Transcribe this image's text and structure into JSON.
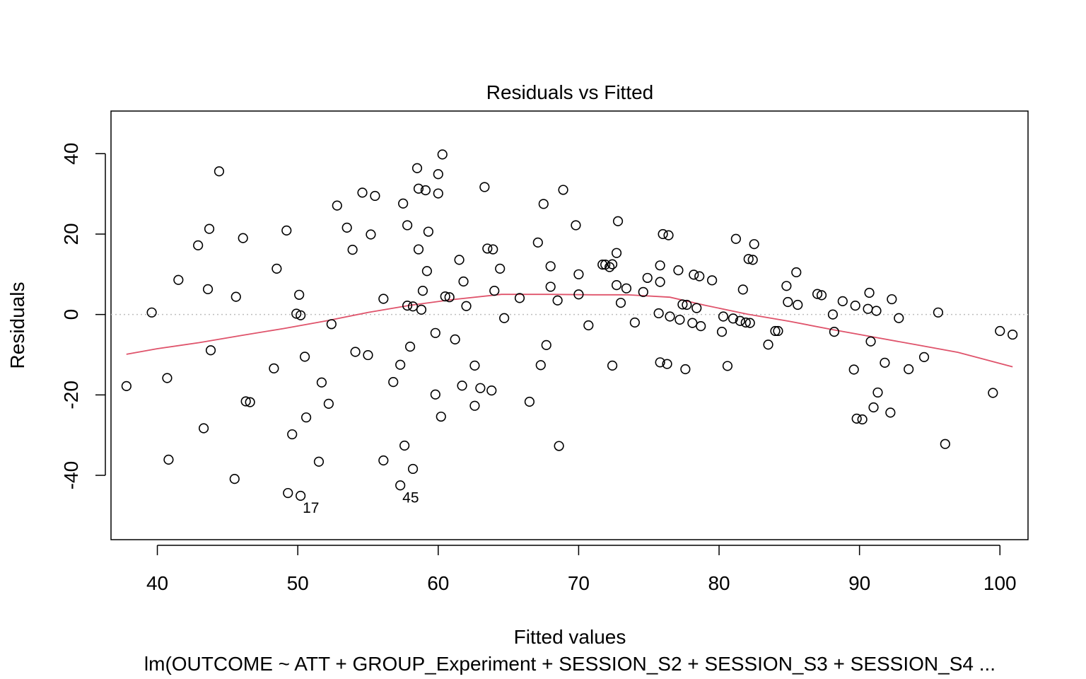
{
  "chart_data": {
    "type": "scatter",
    "title": "Residuals vs Fitted",
    "xlabel": "Fitted values",
    "ylabel": "Residuals",
    "subtitle": "lm(OUTCOME ~ ATT + GROUP_Experiment + SESSION_S2 + SESSION_S3 + SESSION_S4  ...",
    "xlim": [
      36.7,
      102.0
    ],
    "ylim": [
      -56.0,
      50.6
    ],
    "x_ticks": [
      40,
      50,
      60,
      70,
      80,
      90,
      100
    ],
    "x_tick_labels": [
      "40",
      "50",
      "60",
      "70",
      "80",
      "90",
      "100"
    ],
    "y_ticks": [
      -40,
      -20,
      0,
      20,
      40
    ],
    "y_tick_labels": [
      "-40",
      "-20",
      "0",
      "20",
      "40"
    ],
    "reference_line_y": 0,
    "grid": false,
    "colors": {
      "points": "#000000",
      "smooth": "#DF536B",
      "reference": "#BEBEBE"
    },
    "points": [
      {
        "x": 37.8,
        "y": -17.8
      },
      {
        "x": 39.6,
        "y": 0.5
      },
      {
        "x": 40.7,
        "y": -15.8
      },
      {
        "x": 40.8,
        "y": -36.1
      },
      {
        "x": 41.5,
        "y": 8.6
      },
      {
        "x": 42.9,
        "y": 17.2
      },
      {
        "x": 43.3,
        "y": -28.3
      },
      {
        "x": 43.6,
        "y": 6.3
      },
      {
        "x": 43.7,
        "y": 21.3
      },
      {
        "x": 43.8,
        "y": -8.9
      },
      {
        "x": 44.4,
        "y": 35.6
      },
      {
        "x": 45.5,
        "y": -40.9
      },
      {
        "x": 45.6,
        "y": 4.4
      },
      {
        "x": 46.1,
        "y": 19.0
      },
      {
        "x": 46.3,
        "y": -21.6
      },
      {
        "x": 46.6,
        "y": -21.8
      },
      {
        "x": 48.3,
        "y": -13.4
      },
      {
        "x": 48.5,
        "y": 11.4
      },
      {
        "x": 49.2,
        "y": 20.9
      },
      {
        "x": 49.3,
        "y": -44.4
      },
      {
        "x": 49.6,
        "y": -29.8
      },
      {
        "x": 49.9,
        "y": 0.2
      },
      {
        "x": 50.1,
        "y": 4.9
      },
      {
        "x": 50.2,
        "y": -0.2
      },
      {
        "x": 50.2,
        "y": -45.1
      },
      {
        "x": 50.5,
        "y": -10.5
      },
      {
        "x": 50.6,
        "y": -25.6
      },
      {
        "x": 51.5,
        "y": -36.6
      },
      {
        "x": 51.7,
        "y": -16.9
      },
      {
        "x": 52.2,
        "y": -22.2
      },
      {
        "x": 52.4,
        "y": -2.4
      },
      {
        "x": 52.8,
        "y": 27.1
      },
      {
        "x": 53.5,
        "y": 21.6
      },
      {
        "x": 53.9,
        "y": 16.1
      },
      {
        "x": 54.1,
        "y": -9.3
      },
      {
        "x": 54.6,
        "y": 30.3
      },
      {
        "x": 55.0,
        "y": -10.1
      },
      {
        "x": 55.2,
        "y": 19.9
      },
      {
        "x": 55.5,
        "y": 29.5
      },
      {
        "x": 56.1,
        "y": -36.3
      },
      {
        "x": 56.1,
        "y": 3.9
      },
      {
        "x": 56.8,
        "y": -16.8
      },
      {
        "x": 57.3,
        "y": -42.5
      },
      {
        "x": 57.3,
        "y": -12.5
      },
      {
        "x": 57.5,
        "y": 27.6
      },
      {
        "x": 57.6,
        "y": -32.6
      },
      {
        "x": 57.8,
        "y": 22.2
      },
      {
        "x": 57.8,
        "y": 2.2
      },
      {
        "x": 58.0,
        "y": -8.0
      },
      {
        "x": 58.2,
        "y": 2.0
      },
      {
        "x": 58.2,
        "y": -38.4
      },
      {
        "x": 58.5,
        "y": 36.4
      },
      {
        "x": 58.6,
        "y": 31.3
      },
      {
        "x": 58.6,
        "y": 16.2
      },
      {
        "x": 58.8,
        "y": 1.2
      },
      {
        "x": 58.9,
        "y": 5.9
      },
      {
        "x": 59.1,
        "y": 30.9
      },
      {
        "x": 59.2,
        "y": 10.8
      },
      {
        "x": 59.3,
        "y": 20.6
      },
      {
        "x": 59.8,
        "y": -4.6
      },
      {
        "x": 59.8,
        "y": -19.9
      },
      {
        "x": 60.0,
        "y": 30.1
      },
      {
        "x": 60.0,
        "y": 34.9
      },
      {
        "x": 60.2,
        "y": -25.4
      },
      {
        "x": 60.3,
        "y": 39.8
      },
      {
        "x": 60.5,
        "y": 4.5
      },
      {
        "x": 60.8,
        "y": 4.3
      },
      {
        "x": 61.2,
        "y": -6.2
      },
      {
        "x": 61.5,
        "y": 13.6
      },
      {
        "x": 61.7,
        "y": -17.7
      },
      {
        "x": 61.8,
        "y": 8.2
      },
      {
        "x": 62.0,
        "y": 2.1
      },
      {
        "x": 62.6,
        "y": -12.7
      },
      {
        "x": 62.6,
        "y": -22.7
      },
      {
        "x": 63.0,
        "y": -18.3
      },
      {
        "x": 63.3,
        "y": 31.7
      },
      {
        "x": 63.5,
        "y": 16.4
      },
      {
        "x": 63.8,
        "y": -18.9
      },
      {
        "x": 63.9,
        "y": 16.2
      },
      {
        "x": 64.0,
        "y": 5.9
      },
      {
        "x": 64.4,
        "y": 11.4
      },
      {
        "x": 64.7,
        "y": -0.9
      },
      {
        "x": 65.8,
        "y": 4.1
      },
      {
        "x": 66.5,
        "y": -21.7
      },
      {
        "x": 67.1,
        "y": 17.9
      },
      {
        "x": 67.3,
        "y": -12.6
      },
      {
        "x": 67.5,
        "y": 27.5
      },
      {
        "x": 67.7,
        "y": -7.6
      },
      {
        "x": 68.0,
        "y": 12.0
      },
      {
        "x": 68.0,
        "y": 6.9
      },
      {
        "x": 68.5,
        "y": 3.5
      },
      {
        "x": 68.6,
        "y": -32.7
      },
      {
        "x": 68.9,
        "y": 31.0
      },
      {
        "x": 69.8,
        "y": 22.2
      },
      {
        "x": 70.0,
        "y": 10.0
      },
      {
        "x": 70.0,
        "y": 5.0
      },
      {
        "x": 70.7,
        "y": -2.7
      },
      {
        "x": 71.7,
        "y": 12.4
      },
      {
        "x": 71.9,
        "y": 12.4
      },
      {
        "x": 72.2,
        "y": 11.8
      },
      {
        "x": 72.4,
        "y": 12.5
      },
      {
        "x": 72.4,
        "y": -12.7
      },
      {
        "x": 72.7,
        "y": 7.3
      },
      {
        "x": 72.7,
        "y": 15.3
      },
      {
        "x": 72.8,
        "y": 23.2
      },
      {
        "x": 73.0,
        "y": 2.9
      },
      {
        "x": 73.4,
        "y": 6.5
      },
      {
        "x": 74.0,
        "y": -2.0
      },
      {
        "x": 74.6,
        "y": 5.6
      },
      {
        "x": 74.9,
        "y": 9.1
      },
      {
        "x": 75.7,
        "y": 0.3
      },
      {
        "x": 75.8,
        "y": -11.9
      },
      {
        "x": 75.8,
        "y": 12.2
      },
      {
        "x": 75.8,
        "y": 8.1
      },
      {
        "x": 76.0,
        "y": 20.0
      },
      {
        "x": 76.3,
        "y": -12.3
      },
      {
        "x": 76.4,
        "y": 19.7
      },
      {
        "x": 76.5,
        "y": -0.5
      },
      {
        "x": 77.1,
        "y": 11.0
      },
      {
        "x": 77.2,
        "y": -1.3
      },
      {
        "x": 77.4,
        "y": 2.5
      },
      {
        "x": 77.6,
        "y": -13.6
      },
      {
        "x": 77.7,
        "y": 2.4
      },
      {
        "x": 78.1,
        "y": -2.1
      },
      {
        "x": 78.2,
        "y": 9.9
      },
      {
        "x": 78.4,
        "y": 1.6
      },
      {
        "x": 78.6,
        "y": 9.5
      },
      {
        "x": 78.7,
        "y": -2.9
      },
      {
        "x": 79.5,
        "y": 8.5
      },
      {
        "x": 80.2,
        "y": -4.3
      },
      {
        "x": 80.3,
        "y": -0.5
      },
      {
        "x": 80.6,
        "y": -12.8
      },
      {
        "x": 81.0,
        "y": -1.0
      },
      {
        "x": 81.2,
        "y": 18.8
      },
      {
        "x": 81.5,
        "y": -1.6
      },
      {
        "x": 81.7,
        "y": 6.2
      },
      {
        "x": 81.9,
        "y": -2.0
      },
      {
        "x": 82.1,
        "y": 13.8
      },
      {
        "x": 82.2,
        "y": -2.1
      },
      {
        "x": 82.4,
        "y": 13.6
      },
      {
        "x": 82.5,
        "y": 17.5
      },
      {
        "x": 83.5,
        "y": -7.5
      },
      {
        "x": 84.0,
        "y": -4.1
      },
      {
        "x": 84.2,
        "y": -4.1
      },
      {
        "x": 84.8,
        "y": 7.1
      },
      {
        "x": 84.9,
        "y": 3.1
      },
      {
        "x": 85.5,
        "y": 10.5
      },
      {
        "x": 85.6,
        "y": 2.4
      },
      {
        "x": 87.0,
        "y": 5.1
      },
      {
        "x": 87.3,
        "y": 4.8
      },
      {
        "x": 88.1,
        "y": 0.0
      },
      {
        "x": 88.2,
        "y": -4.3
      },
      {
        "x": 88.8,
        "y": 3.3
      },
      {
        "x": 89.6,
        "y": -13.7
      },
      {
        "x": 89.7,
        "y": 2.2
      },
      {
        "x": 89.8,
        "y": -25.9
      },
      {
        "x": 90.2,
        "y": -26.1
      },
      {
        "x": 90.6,
        "y": 1.4
      },
      {
        "x": 90.7,
        "y": 5.4
      },
      {
        "x": 90.8,
        "y": -6.7
      },
      {
        "x": 91.0,
        "y": -23.1
      },
      {
        "x": 91.2,
        "y": 0.9
      },
      {
        "x": 91.3,
        "y": -19.4
      },
      {
        "x": 91.8,
        "y": -12.0
      },
      {
        "x": 92.2,
        "y": -24.4
      },
      {
        "x": 92.3,
        "y": 3.8
      },
      {
        "x": 92.8,
        "y": -0.9
      },
      {
        "x": 93.5,
        "y": -13.6
      },
      {
        "x": 94.6,
        "y": -10.6
      },
      {
        "x": 95.6,
        "y": 0.5
      },
      {
        "x": 96.1,
        "y": -32.2
      },
      {
        "x": 99.5,
        "y": -19.5
      },
      {
        "x": 100.0,
        "y": -4.1
      },
      {
        "x": 100.9,
        "y": -5.0
      }
    ],
    "smooth_line": [
      {
        "x": 37.8,
        "y": -9.9
      },
      {
        "x": 40.0,
        "y": -8.5
      },
      {
        "x": 43.0,
        "y": -7.0
      },
      {
        "x": 46.0,
        "y": -5.2
      },
      {
        "x": 49.0,
        "y": -3.5
      },
      {
        "x": 52.0,
        "y": -1.6
      },
      {
        "x": 55.0,
        "y": 0.5
      },
      {
        "x": 58.0,
        "y": 2.3
      },
      {
        "x": 61.0,
        "y": 3.7
      },
      {
        "x": 64.5,
        "y": 5.0
      },
      {
        "x": 68.0,
        "y": 5.0
      },
      {
        "x": 71.0,
        "y": 4.9
      },
      {
        "x": 73.5,
        "y": 4.9
      },
      {
        "x": 76.5,
        "y": 4.3
      },
      {
        "x": 79.0,
        "y": 2.3
      },
      {
        "x": 82.0,
        "y": 0.1
      },
      {
        "x": 85.0,
        "y": -1.7
      },
      {
        "x": 88.0,
        "y": -3.7
      },
      {
        "x": 91.0,
        "y": -5.6
      },
      {
        "x": 94.0,
        "y": -7.5
      },
      {
        "x": 97.0,
        "y": -9.4
      },
      {
        "x": 100.9,
        "y": -13.0
      }
    ],
    "annotations": [
      {
        "text": "17",
        "x": 50.2,
        "y": -45.1
      },
      {
        "text": "45",
        "x": 57.3,
        "y": -42.5
      }
    ]
  }
}
